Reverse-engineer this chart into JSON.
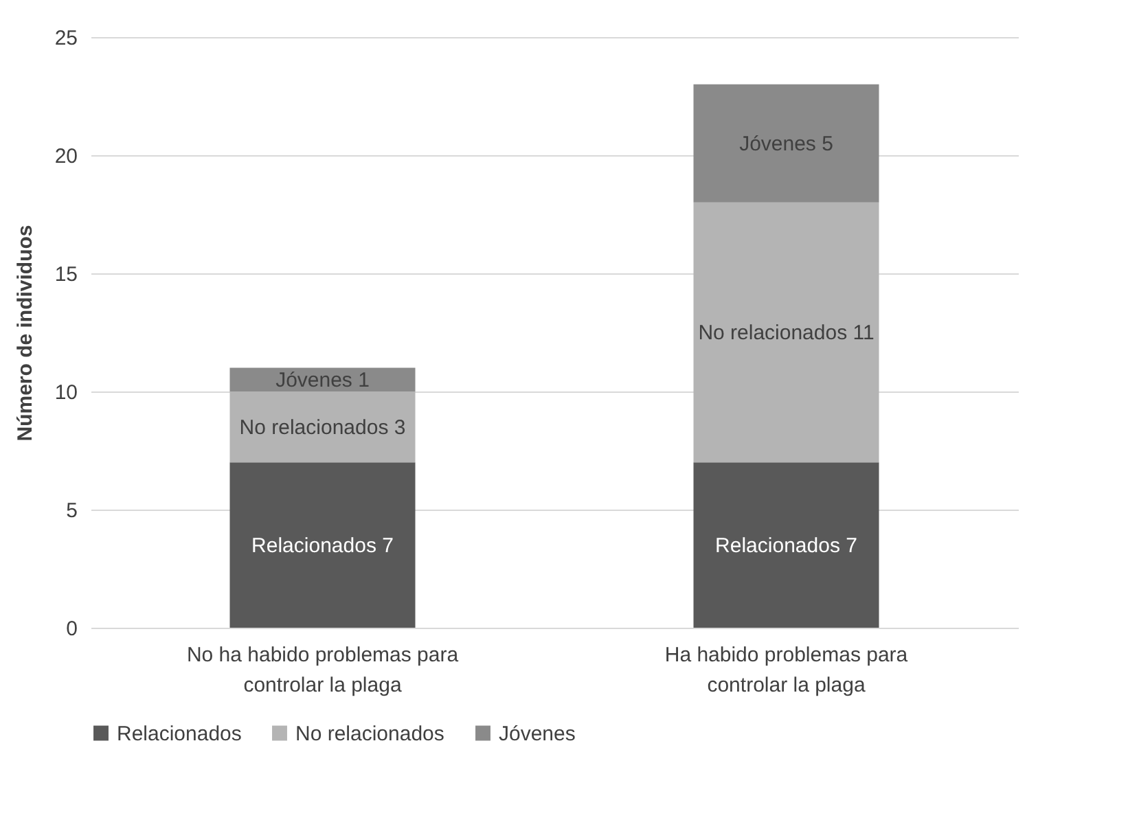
{
  "chart_data": {
    "type": "bar",
    "stacked": true,
    "ylabel": "Número de individuos",
    "categories": [
      "No ha habido problemas para controlar la plaga",
      "Ha habido problemas para controlar la plaga"
    ],
    "series": [
      {
        "name": "Relacionados",
        "color": "#595959",
        "values": [
          7,
          7
        ],
        "value_labels": [
          "Relacionados 7",
          "Relacionados 7"
        ]
      },
      {
        "name": "No relacionados",
        "color": "#b4b4b4",
        "values": [
          3,
          11
        ],
        "value_labels": [
          "No relacionados 3",
          "No relacionados 11"
        ]
      },
      {
        "name": "Jóvenes",
        "color": "#8a8a8a",
        "values": [
          1,
          5
        ],
        "value_labels": [
          "Jóvenes 1",
          "Jóvenes 5"
        ]
      }
    ],
    "ylim": [
      0,
      25
    ],
    "yticks": [
      0,
      5,
      10,
      15,
      20,
      25
    ],
    "grid": "y",
    "legend": "bottom"
  }
}
